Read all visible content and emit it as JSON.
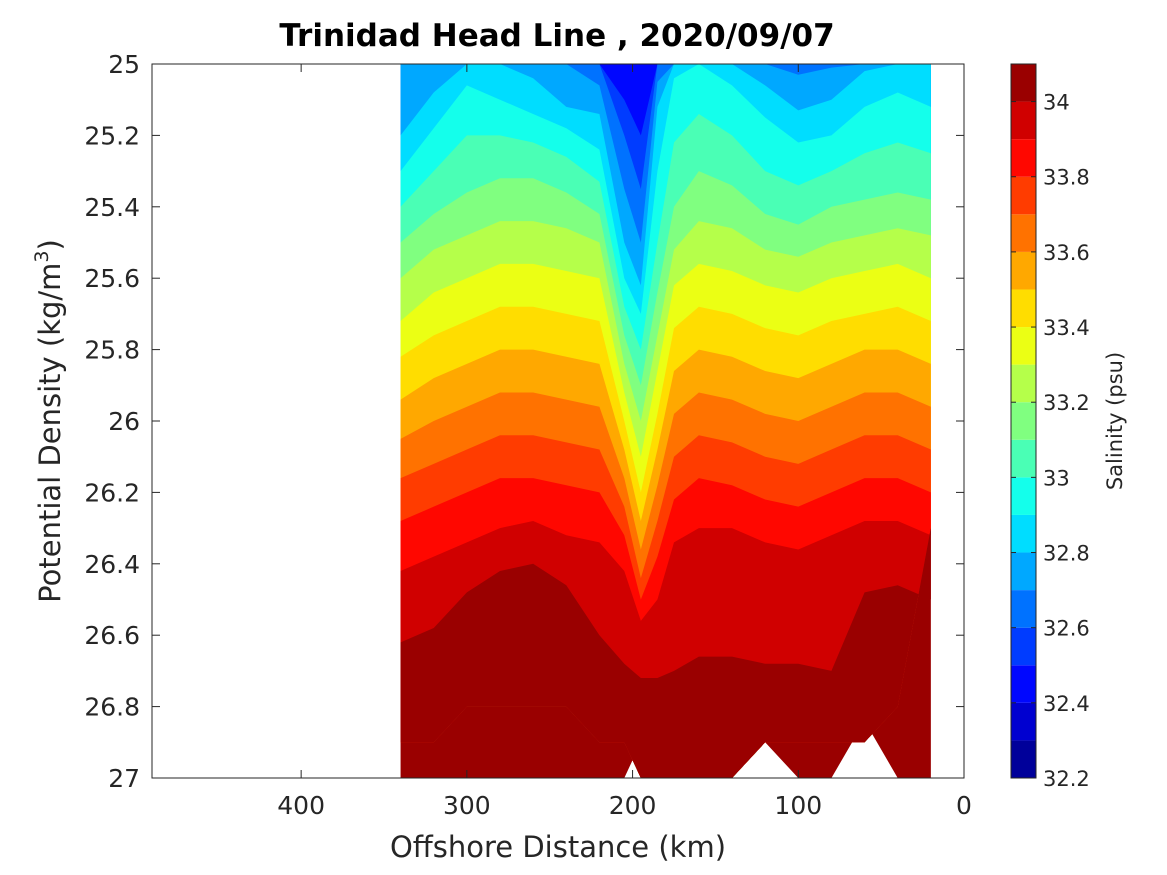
{
  "chart_data": {
    "type": "filled-contour",
    "title": "Trinidad Head Line , 2020/09/07",
    "xlabel": "Offshore Distance (km)",
    "ylabel_prefix": "Potential Density (kg/m",
    "ylabel_sup": "3",
    "ylabel_suffix": ")",
    "colorbar_label": "Salinity (psu)",
    "x_axis": {
      "reversed": true,
      "lim": [
        490,
        0
      ],
      "ticks": [
        "400",
        "300",
        "200",
        "100",
        "0"
      ],
      "tick_values": [
        400,
        300,
        200,
        100,
        0
      ]
    },
    "y_axis": {
      "reversed": true,
      "lim": [
        25,
        27
      ],
      "ticks": [
        "25",
        "25.2",
        "25.4",
        "25.6",
        "25.8",
        "26",
        "26.2",
        "26.4",
        "26.6",
        "26.8",
        "27"
      ],
      "tick_values": [
        25,
        25.2,
        25.4,
        25.6,
        25.8,
        26,
        26.2,
        26.4,
        26.6,
        26.8,
        27
      ]
    },
    "colorbar": {
      "lim": [
        32.2,
        34.1
      ],
      "ticks": [
        "32.2",
        "32.4",
        "32.6",
        "32.8",
        "33",
        "33.2",
        "33.4",
        "33.6",
        "33.8",
        "34"
      ],
      "tick_values": [
        32.2,
        32.4,
        32.6,
        32.8,
        33.0,
        33.2,
        33.4,
        33.6,
        33.8,
        34.0
      ],
      "levels": [
        32.2,
        32.3,
        32.4,
        32.5,
        32.6,
        32.7,
        32.8,
        32.9,
        33.0,
        33.1,
        33.2,
        33.3,
        33.4,
        33.5,
        33.6,
        33.7,
        33.8,
        33.9,
        34.0,
        34.1
      ],
      "colormap": "jet"
    },
    "contour_boundaries": {
      "x": [
        340,
        320,
        300,
        280,
        260,
        240,
        220,
        205,
        195,
        185,
        175,
        160,
        140,
        120,
        100,
        80,
        60,
        40,
        20
      ],
      "sigma_bottom": [
        26.9,
        26.9,
        26.8,
        26.8,
        26.8,
        26.8,
        26.9,
        26.9,
        27.0,
        27.0,
        27.0,
        27.0,
        27.0,
        26.9,
        26.9,
        26.9,
        26.9,
        26.8,
        26.3
      ],
      "level_tops": [
        {
          "level": 32.4,
          "sigma": [
            25.0,
            25.0,
            25.0,
            25.0,
            25.0,
            25.0,
            25.0,
            25.0,
            25.0,
            25.0,
            25.0,
            25.0,
            25.0,
            25.0,
            25.0,
            25.0,
            25.0,
            25.0,
            25.0
          ]
        },
        {
          "level": 32.5,
          "sigma": [
            25.0,
            25.0,
            25.0,
            25.0,
            25.0,
            25.0,
            25.0,
            25.1,
            25.2,
            25.0,
            25.0,
            25.0,
            25.0,
            25.0,
            25.0,
            25.0,
            25.0,
            25.0,
            25.0
          ]
        },
        {
          "level": 32.6,
          "sigma": [
            25.0,
            25.0,
            25.0,
            25.0,
            25.0,
            25.0,
            25.0,
            25.2,
            25.35,
            25.0,
            25.0,
            25.0,
            25.0,
            25.0,
            25.0,
            25.0,
            25.0,
            25.0,
            25.0
          ]
        },
        {
          "level": 32.7,
          "sigma": [
            25.0,
            25.0,
            25.0,
            25.0,
            25.0,
            25.0,
            25.06,
            25.35,
            25.5,
            25.05,
            25.0,
            25.0,
            25.0,
            25.0,
            25.03,
            25.01,
            25.0,
            25.0,
            25.0
          ]
        },
        {
          "level": 32.8,
          "sigma": [
            25.2,
            25.08,
            25.0,
            25.0,
            25.04,
            25.12,
            25.14,
            25.5,
            25.62,
            25.12,
            25.0,
            25.0,
            25.0,
            25.06,
            25.13,
            25.1,
            25.02,
            25.0,
            25.0
          ]
        },
        {
          "level": 32.9,
          "sigma": [
            25.3,
            25.18,
            25.06,
            25.1,
            25.14,
            25.18,
            25.24,
            25.6,
            25.7,
            25.3,
            25.04,
            25.0,
            25.06,
            25.15,
            25.22,
            25.2,
            25.12,
            25.08,
            25.12
          ]
        },
        {
          "level": 33.0,
          "sigma": [
            25.4,
            25.3,
            25.2,
            25.2,
            25.22,
            25.26,
            25.33,
            25.68,
            25.8,
            25.5,
            25.22,
            25.14,
            25.2,
            25.3,
            25.34,
            25.3,
            25.25,
            25.22,
            25.25
          ]
        },
        {
          "level": 33.1,
          "sigma": [
            25.5,
            25.42,
            25.36,
            25.32,
            25.32,
            25.36,
            25.42,
            25.76,
            25.9,
            25.64,
            25.4,
            25.3,
            25.34,
            25.42,
            25.45,
            25.4,
            25.38,
            25.36,
            25.38
          ]
        },
        {
          "level": 33.2,
          "sigma": [
            25.6,
            25.52,
            25.48,
            25.44,
            25.44,
            25.46,
            25.5,
            25.84,
            26.0,
            25.76,
            25.52,
            25.44,
            25.46,
            25.52,
            25.54,
            25.5,
            25.48,
            25.46,
            25.48
          ]
        },
        {
          "level": 33.3,
          "sigma": [
            25.72,
            25.64,
            25.6,
            25.56,
            25.56,
            25.58,
            25.6,
            25.92,
            26.1,
            25.86,
            25.62,
            25.56,
            25.58,
            25.62,
            25.64,
            25.6,
            25.58,
            25.56,
            25.6
          ]
        },
        {
          "level": 33.4,
          "sigma": [
            25.82,
            25.76,
            25.72,
            25.68,
            25.68,
            25.7,
            25.72,
            26.0,
            26.2,
            25.98,
            25.74,
            25.68,
            25.7,
            25.74,
            25.76,
            25.72,
            25.7,
            25.68,
            25.72
          ]
        },
        {
          "level": 33.5,
          "sigma": [
            25.94,
            25.88,
            25.84,
            25.8,
            25.8,
            25.82,
            25.84,
            26.08,
            26.28,
            26.08,
            25.86,
            25.8,
            25.82,
            25.86,
            25.88,
            25.84,
            25.8,
            25.8,
            25.84
          ]
        },
        {
          "level": 33.6,
          "sigma": [
            26.05,
            26.0,
            25.96,
            25.92,
            25.92,
            25.94,
            25.96,
            26.16,
            26.36,
            26.18,
            25.98,
            25.92,
            25.94,
            25.98,
            26.0,
            25.96,
            25.92,
            25.92,
            25.96
          ]
        },
        {
          "level": 33.7,
          "sigma": [
            26.16,
            26.12,
            26.08,
            26.04,
            26.04,
            26.06,
            26.08,
            26.24,
            26.44,
            26.28,
            26.1,
            26.04,
            26.06,
            26.1,
            26.12,
            26.08,
            26.04,
            26.04,
            26.08
          ]
        },
        {
          "level": 33.8,
          "sigma": [
            26.28,
            26.24,
            26.2,
            26.16,
            26.16,
            26.18,
            26.2,
            26.32,
            26.5,
            26.38,
            26.22,
            26.16,
            26.18,
            26.22,
            26.24,
            26.2,
            26.16,
            26.16,
            26.2
          ]
        },
        {
          "level": 33.9,
          "sigma": [
            26.42,
            26.38,
            26.34,
            26.3,
            26.28,
            26.32,
            26.34,
            26.42,
            26.56,
            26.5,
            26.34,
            26.3,
            26.3,
            26.34,
            26.36,
            26.32,
            26.28,
            26.28,
            26.32
          ]
        },
        {
          "level": 34.0,
          "sigma": [
            26.62,
            26.58,
            26.48,
            26.42,
            26.4,
            26.46,
            26.6,
            26.68,
            26.72,
            26.72,
            26.7,
            26.66,
            26.66,
            26.68,
            26.68,
            26.7,
            26.48,
            26.46,
            26.5
          ]
        },
        {
          "level": 34.1,
          "sigma": [
            27.0,
            27.0,
            27.0,
            27.0,
            27.0,
            27.0,
            27.0,
            27.0,
            26.9,
            26.9,
            26.9,
            26.9,
            26.9,
            26.9,
            27.0,
            27.0,
            26.84,
            27.0,
            27.0
          ]
        }
      ]
    }
  }
}
